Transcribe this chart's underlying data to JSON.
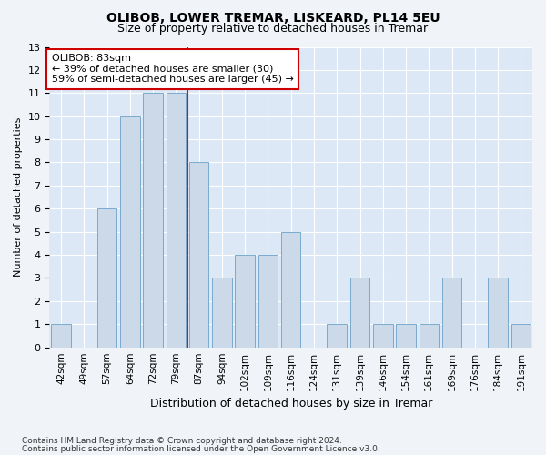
{
  "title1": "OLIBOB, LOWER TREMAR, LISKEARD, PL14 5EU",
  "title2": "Size of property relative to detached houses in Tremar",
  "xlabel": "Distribution of detached houses by size in Tremar",
  "ylabel": "Number of detached properties",
  "categories": [
    "42sqm",
    "49sqm",
    "57sqm",
    "64sqm",
    "72sqm",
    "79sqm",
    "87sqm",
    "94sqm",
    "102sqm",
    "109sqm",
    "116sqm",
    "124sqm",
    "131sqm",
    "139sqm",
    "146sqm",
    "154sqm",
    "161sqm",
    "169sqm",
    "176sqm",
    "184sqm",
    "191sqm"
  ],
  "values": [
    1,
    0,
    6,
    10,
    11,
    11,
    8,
    3,
    4,
    4,
    5,
    0,
    1,
    3,
    1,
    1,
    1,
    3,
    0,
    3,
    1
  ],
  "bar_color": "#ccd9e8",
  "bar_edge_color": "#7aaad0",
  "red_line_x": 5.5,
  "annotation_text": "OLIBOB: 83sqm\n← 39% of detached houses are smaller (30)\n59% of semi-detached houses are larger (45) →",
  "annotation_box_color": "#ffffff",
  "annotation_box_edge": "#cc0000",
  "ylim": [
    0,
    13
  ],
  "yticks": [
    0,
    1,
    2,
    3,
    4,
    5,
    6,
    7,
    8,
    9,
    10,
    11,
    12,
    13
  ],
  "footer1": "Contains HM Land Registry data © Crown copyright and database right 2024.",
  "footer2": "Contains public sector information licensed under the Open Government Licence v3.0.",
  "bg_color": "#dce8f5",
  "grid_color": "#ffffff",
  "fig_bg": "#f0f4f8"
}
